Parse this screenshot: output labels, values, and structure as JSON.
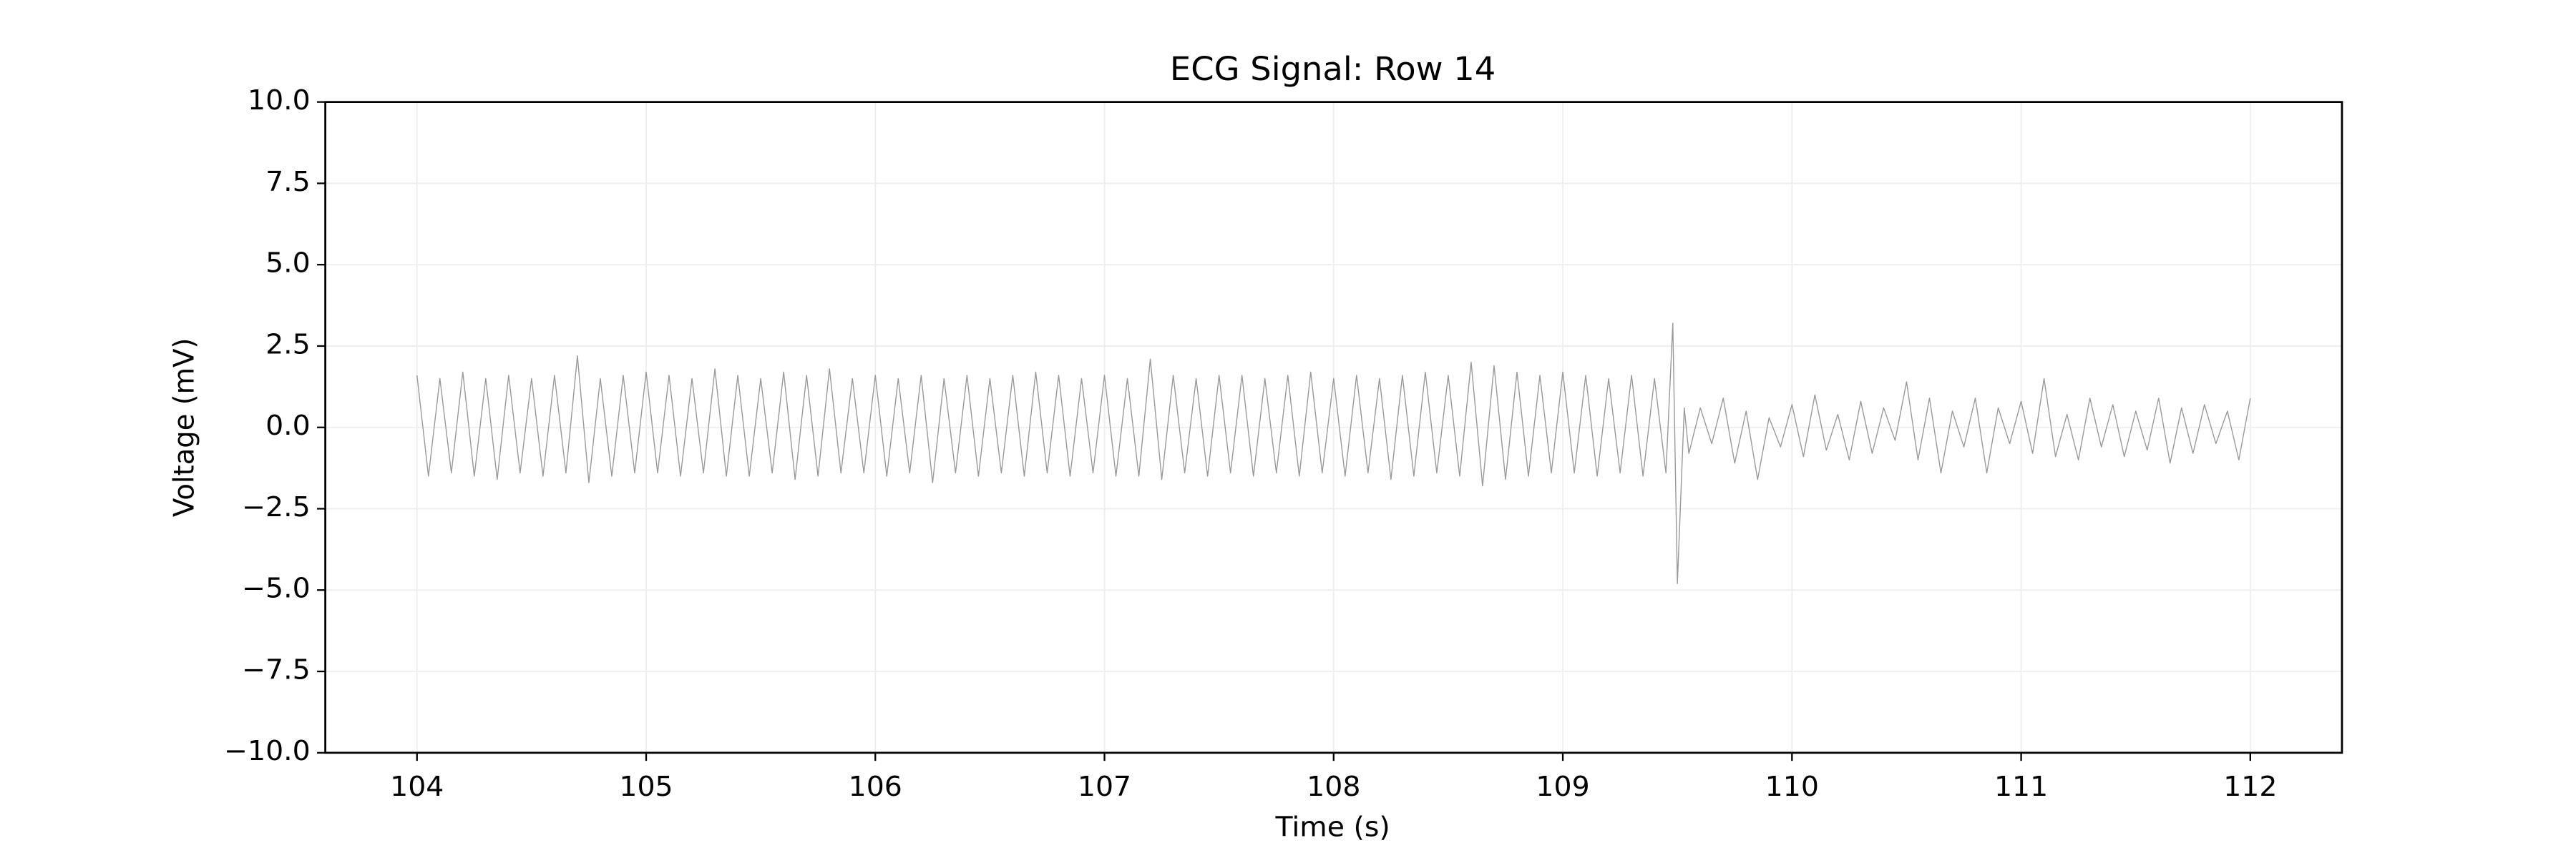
{
  "chart_data": {
    "type": "line",
    "title": "ECG Signal: Row 14",
    "xlabel": "Time (s)",
    "ylabel": "Voltage (mV)",
    "color": "#999999",
    "grid": true,
    "xlim": [
      103.6,
      112.4
    ],
    "xticks": [
      104,
      105,
      106,
      107,
      108,
      109,
      110,
      111,
      112
    ],
    "ylim": [
      -10,
      10
    ],
    "yticks": [
      {
        "value": -10,
        "label": "−10.0"
      },
      {
        "value": -7.5,
        "label": "−7.5"
      },
      {
        "value": -5,
        "label": "−5.0"
      },
      {
        "value": -2.5,
        "label": "−2.5"
      },
      {
        "value": 0,
        "label": "0.0"
      },
      2.5,
      {
        "value": 5,
        "label": "5.0"
      },
      7.5,
      {
        "value": 10,
        "label": "10.0"
      }
    ],
    "x": [
      104,
      104.05,
      104.1,
      104.15,
      104.2,
      104.25,
      104.3,
      104.35,
      104.4,
      104.45,
      104.5,
      104.55,
      104.6,
      104.65,
      104.7,
      104.75,
      104.8,
      104.85,
      104.9,
      104.95,
      105,
      105.05,
      105.1,
      105.15,
      105.2,
      105.25,
      105.3,
      105.35,
      105.4,
      105.45,
      105.5,
      105.55,
      105.6,
      105.65,
      105.7,
      105.75,
      105.8,
      105.85,
      105.9,
      105.95,
      106,
      106.05,
      106.1,
      106.15,
      106.2,
      106.25,
      106.3,
      106.35,
      106.4,
      106.45,
      106.5,
      106.55,
      106.6,
      106.65,
      106.7,
      106.75,
      106.8,
      106.85,
      106.9,
      106.95,
      107,
      107.05,
      107.1,
      107.15,
      107.2,
      107.25,
      107.3,
      107.35,
      107.4,
      107.45,
      107.5,
      107.55,
      107.6,
      107.65,
      107.7,
      107.75,
      107.8,
      107.85,
      107.9,
      107.95,
      108,
      108.05,
      108.1,
      108.15,
      108.2,
      108.25,
      108.3,
      108.35,
      108.4,
      108.45,
      108.5,
      108.55,
      108.6,
      108.65,
      108.7,
      108.75,
      108.8,
      108.85,
      108.9,
      108.95,
      109,
      109.05,
      109.1,
      109.15,
      109.2,
      109.25,
      109.3,
      109.35,
      109.4,
      109.45,
      109.48,
      109.5,
      109.53,
      109.55,
      109.6,
      109.65,
      109.7,
      109.75,
      109.8,
      109.85,
      109.9,
      109.95,
      110,
      110.05,
      110.1,
      110.15,
      110.2,
      110.25,
      110.3,
      110.35,
      110.4,
      110.45,
      110.5,
      110.55,
      110.6,
      110.65,
      110.7,
      110.75,
      110.8,
      110.85,
      110.9,
      110.95,
      111,
      111.05,
      111.1,
      111.15,
      111.2,
      111.25,
      111.3,
      111.35,
      111.4,
      111.45,
      111.5,
      111.55,
      111.6,
      111.65,
      111.7,
      111.75,
      111.8,
      111.85,
      111.9,
      111.95,
      112
    ],
    "values": [
      1.6,
      -1.5,
      1.5,
      -1.4,
      1.7,
      -1.5,
      1.5,
      -1.6,
      1.6,
      -1.4,
      1.5,
      -1.5,
      1.6,
      -1.4,
      2.2,
      -1.7,
      1.5,
      -1.5,
      1.6,
      -1.4,
      1.7,
      -1.4,
      1.6,
      -1.5,
      1.5,
      -1.4,
      1.8,
      -1.5,
      1.6,
      -1.5,
      1.5,
      -1.4,
      1.7,
      -1.6,
      1.6,
      -1.5,
      1.8,
      -1.4,
      1.5,
      -1.4,
      1.6,
      -1.5,
      1.5,
      -1.4,
      1.6,
      -1.7,
      1.5,
      -1.4,
      1.6,
      -1.5,
      1.5,
      -1.4,
      1.6,
      -1.5,
      1.7,
      -1.4,
      1.6,
      -1.5,
      1.5,
      -1.4,
      1.6,
      -1.5,
      1.5,
      -1.5,
      2.1,
      -1.6,
      1.6,
      -1.4,
      1.5,
      -1.5,
      1.6,
      -1.4,
      1.6,
      -1.5,
      1.5,
      -1.4,
      1.6,
      -1.5,
      1.7,
      -1.4,
      1.5,
      -1.5,
      1.6,
      -1.4,
      1.5,
      -1.6,
      1.6,
      -1.5,
      1.7,
      -1.4,
      1.6,
      -1.5,
      2.0,
      -1.8,
      1.9,
      -1.6,
      1.7,
      -1.5,
      1.6,
      -1.4,
      1.7,
      -1.4,
      1.6,
      -1.5,
      1.5,
      -1.4,
      1.6,
      -1.5,
      1.5,
      -1.4,
      3.2,
      -4.8,
      0.6,
      -0.8,
      0.6,
      -0.5,
      0.9,
      -1.1,
      0.5,
      -1.6,
      0.3,
      -0.6,
      0.7,
      -0.9,
      1.0,
      -0.7,
      0.4,
      -1.0,
      0.8,
      -0.8,
      0.6,
      -0.4,
      1.4,
      -1.0,
      0.9,
      -1.4,
      0.5,
      -0.6,
      0.9,
      -1.4,
      0.6,
      -0.5,
      0.8,
      -0.8,
      1.5,
      -0.9,
      0.4,
      -1.0,
      0.9,
      -0.6,
      0.7,
      -0.9,
      0.5,
      -0.7,
      0.9,
      -1.1,
      0.6,
      -0.8,
      0.7,
      -0.5,
      0.5,
      -1.0,
      0.9
    ]
  }
}
